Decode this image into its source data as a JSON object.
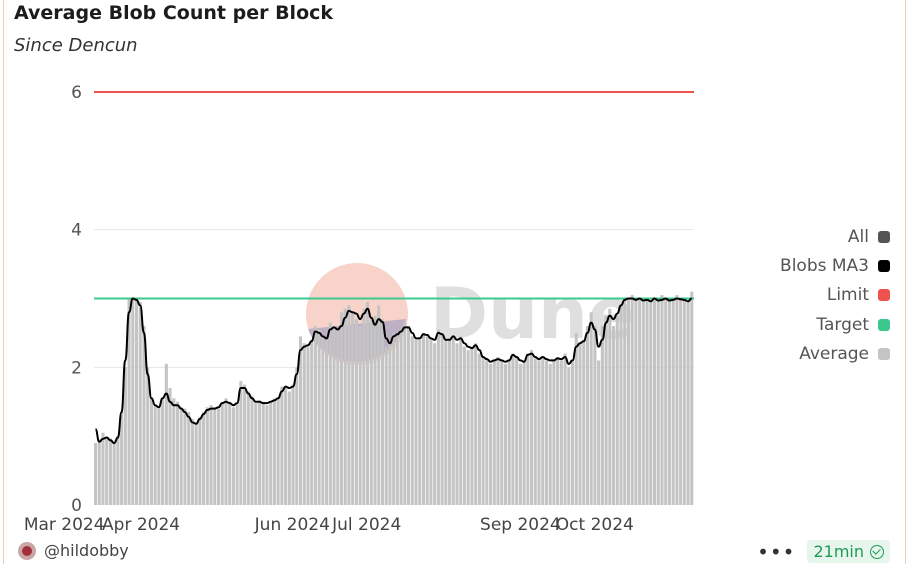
{
  "header": {
    "title": "Average Blob Count per Block",
    "subtitle": "Since Dencun"
  },
  "footer": {
    "user": "@hildobby",
    "refresh": "21min",
    "more_icon": "more-dots-icon",
    "status_icon": "check-circle-icon"
  },
  "watermark": "Dune",
  "legend": [
    {
      "label": "All",
      "color": "#555555"
    },
    {
      "label": "Blobs MA3",
      "color": "#000000"
    },
    {
      "label": "Limit",
      "color": "#ef5350"
    },
    {
      "label": "Target",
      "color": "#3cc98e"
    },
    {
      "label": "Average",
      "color": "#c4c4c4"
    }
  ],
  "chart_data": {
    "type": "bar",
    "x_start": "2024-03-13",
    "x_end": "2024-11-10",
    "x_tick_labels": [
      "Mar 2024",
      "Apr 2024",
      "Jun 2024",
      "Jul 2024",
      "Sep 2024",
      "Oct 2024"
    ],
    "y_ticks": [
      0,
      2,
      4,
      6
    ],
    "ylim": [
      0,
      6.4
    ],
    "grid": true,
    "legend_position": "right",
    "series": [
      {
        "name": "Limit",
        "type": "line",
        "color": "#ef5350",
        "value": 6
      },
      {
        "name": "Target",
        "type": "line",
        "color": "#3cc98e",
        "value": 3
      },
      {
        "name": "Average",
        "type": "bar",
        "color": "#c4c4c4",
        "values": [
          0.9,
          0.95,
          1.05,
          0.98,
          0.97,
          0.92,
          1.0,
          1.35,
          2.0,
          3.0,
          3.0,
          3.0,
          2.95,
          2.6,
          2.0,
          1.55,
          1.45,
          1.4,
          1.55,
          2.05,
          1.7,
          1.55,
          1.5,
          1.42,
          1.4,
          1.35,
          1.25,
          1.2,
          1.28,
          1.35,
          1.42,
          1.45,
          1.42,
          1.4,
          1.48,
          1.55,
          1.5,
          1.42,
          1.48,
          1.8,
          1.75,
          1.65,
          1.58,
          1.48,
          1.52,
          1.5,
          1.45,
          1.5,
          1.55,
          1.55,
          1.72,
          1.7,
          1.65,
          1.75,
          2.0,
          2.45,
          2.35,
          2.3,
          2.4,
          2.6,
          2.55,
          2.45,
          2.4,
          2.65,
          2.6,
          2.55,
          2.8,
          2.85,
          2.9,
          2.8,
          2.7,
          2.6,
          2.85,
          2.95,
          2.7,
          2.75,
          2.9,
          2.7,
          2.3,
          2.4,
          2.5,
          2.45,
          2.55,
          2.65,
          2.6,
          2.45,
          2.4,
          2.4,
          2.5,
          2.45,
          2.4,
          2.35,
          2.55,
          2.5,
          2.4,
          2.42,
          2.45,
          2.35,
          2.45,
          2.3,
          2.25,
          2.3,
          2.35,
          2.2,
          2.15,
          2.1,
          2.05,
          2.1,
          2.15,
          2.1,
          2.05,
          2.1,
          2.2,
          2.15,
          2.05,
          2.1,
          2.2,
          2.25,
          2.15,
          2.1,
          2.15,
          2.1,
          2.05,
          2.1,
          2.15,
          2.1,
          2.2,
          2.0,
          2.1,
          2.5,
          2.35,
          2.4,
          2.6,
          2.8,
          2.6,
          2.1,
          2.6,
          2.75,
          2.85,
          2.6,
          2.75,
          2.9,
          3.0,
          3.0,
          3.05,
          3.0,
          3.0,
          2.95,
          3.0,
          2.95,
          3.0,
          2.95,
          3.05,
          3.0,
          2.95,
          3.0,
          3.05,
          3.0,
          3.0,
          2.95,
          3.1
        ]
      },
      {
        "name": "Blobs MA3",
        "type": "line",
        "color": "#000000",
        "values": [
          1.1,
          0.92,
          0.96,
          0.98,
          0.94,
          0.9,
          0.98,
          1.35,
          2.1,
          2.8,
          3.0,
          2.98,
          2.9,
          2.5,
          1.9,
          1.55,
          1.45,
          1.42,
          1.55,
          1.62,
          1.5,
          1.45,
          1.45,
          1.4,
          1.35,
          1.28,
          1.2,
          1.18,
          1.25,
          1.32,
          1.38,
          1.4,
          1.4,
          1.42,
          1.48,
          1.5,
          1.48,
          1.45,
          1.48,
          1.7,
          1.7,
          1.62,
          1.55,
          1.5,
          1.5,
          1.48,
          1.48,
          1.5,
          1.52,
          1.55,
          1.65,
          1.72,
          1.7,
          1.72,
          1.9,
          2.25,
          2.3,
          2.32,
          2.38,
          2.52,
          2.5,
          2.45,
          2.42,
          2.55,
          2.58,
          2.55,
          2.6,
          2.72,
          2.82,
          2.8,
          2.78,
          2.7,
          2.78,
          2.85,
          2.72,
          2.62,
          2.7,
          2.66,
          2.42,
          2.35,
          2.45,
          2.48,
          2.52,
          2.58,
          2.58,
          2.5,
          2.42,
          2.42,
          2.48,
          2.47,
          2.42,
          2.4,
          2.5,
          2.48,
          2.4,
          2.4,
          2.45,
          2.4,
          2.42,
          2.35,
          2.3,
          2.28,
          2.32,
          2.25,
          2.15,
          2.12,
          2.08,
          2.1,
          2.12,
          2.1,
          2.08,
          2.1,
          2.18,
          2.15,
          2.1,
          2.08,
          2.18,
          2.2,
          2.15,
          2.12,
          2.15,
          2.12,
          2.1,
          2.1,
          2.13,
          2.12,
          2.15,
          2.05,
          2.1,
          2.3,
          2.35,
          2.38,
          2.5,
          2.65,
          2.55,
          2.3,
          2.4,
          2.65,
          2.75,
          2.7,
          2.78,
          2.9,
          2.98,
          3.0,
          3.0,
          2.98,
          3.0,
          2.97,
          2.98,
          2.96,
          3.0,
          2.97,
          2.98,
          3.0,
          2.97,
          2.98,
          3.0,
          2.99,
          2.98,
          2.96,
          3.0
        ]
      }
    ]
  }
}
